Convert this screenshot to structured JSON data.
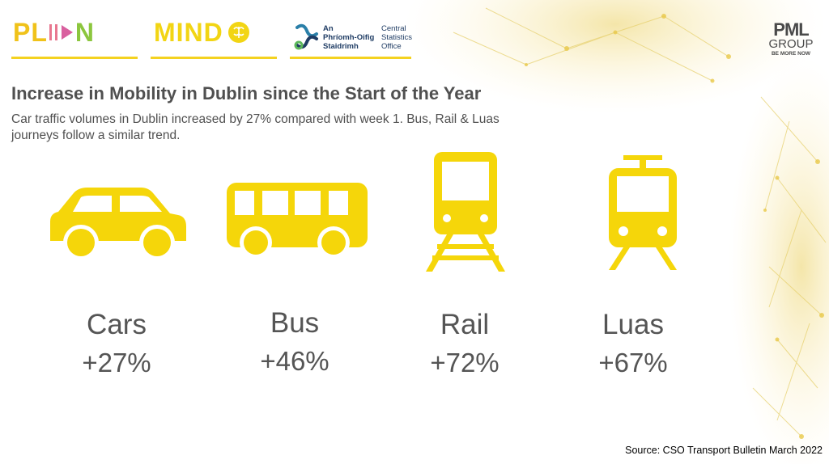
{
  "logos": {
    "plan": {
      "letters": [
        "PL",
        "N"
      ]
    },
    "mind": {
      "text": "MIND"
    },
    "cso": {
      "irish_lines": [
        "An",
        "Phríomh-Oifig",
        "Staidrimh"
      ],
      "english_lines": [
        "Central",
        "Statistics",
        "Office"
      ]
    },
    "pml": {
      "line1": "PML",
      "line2": "GROUP",
      "tagline": "BE MORE NOW"
    }
  },
  "heading": {
    "title": "Increase in Mobility in Dublin since the Start of the Year",
    "subtitle": "Car traffic volumes in Dublin increased by 27% compared with week 1. Bus, Rail  & Luas journeys follow a similar trend."
  },
  "modes": [
    {
      "label": "Cars",
      "value": "+27%",
      "icon": "car-icon"
    },
    {
      "label": "Bus",
      "value": "+46%",
      "icon": "bus-icon"
    },
    {
      "label": "Rail",
      "value": "+72%",
      "icon": "train-icon"
    },
    {
      "label": "Luas",
      "value": "+67%",
      "icon": "tram-icon"
    }
  ],
  "source": "Source: CSO Transport Bulletin March 2022",
  "colors": {
    "icon_yellow": "#f5d60a",
    "text_gray": "#555555",
    "accent_line": "#f4d220"
  }
}
